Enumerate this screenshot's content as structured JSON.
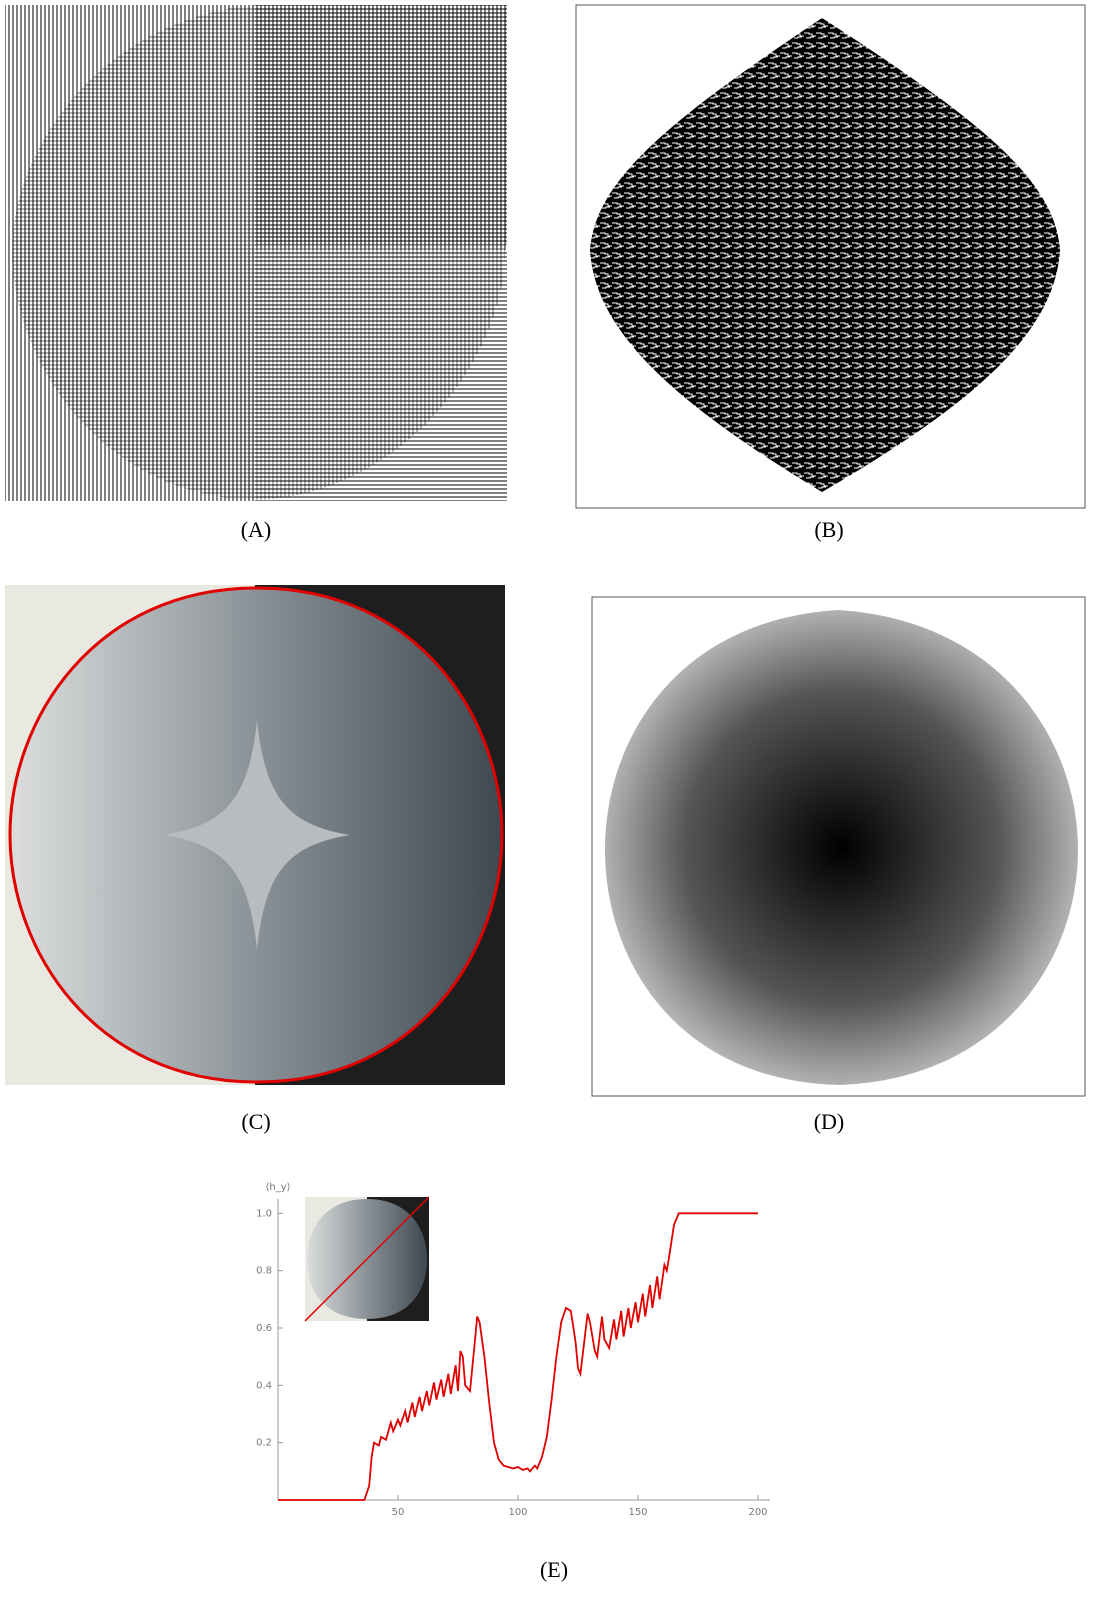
{
  "panels": [
    {
      "caption": "(A)"
    },
    {
      "caption": "(B)"
    },
    {
      "caption": "(C)"
    },
    {
      "caption": "(D)"
    },
    {
      "caption": "(E)"
    }
  ],
  "chart_data": {
    "type": "line",
    "y_label": "⟨h_y⟩",
    "x": [
      0,
      36,
      38,
      39,
      40,
      42,
      43,
      45,
      47,
      48,
      50,
      51,
      53,
      54,
      56,
      57,
      59,
      60,
      62,
      63,
      65,
      66,
      68,
      69,
      71,
      72,
      74,
      75,
      76,
      77,
      78,
      80,
      82,
      83,
      84,
      86,
      88,
      90,
      92,
      94,
      96,
      98,
      100,
      102,
      104,
      105,
      107,
      108,
      110,
      112,
      114,
      116,
      118,
      120,
      122,
      124,
      125,
      126,
      128,
      129,
      130,
      132,
      133,
      135,
      136,
      138,
      140,
      141,
      143,
      144,
      146,
      147,
      149,
      150,
      152,
      153,
      155,
      156,
      158,
      159,
      161,
      162,
      163,
      165,
      167,
      200
    ],
    "series": [
      {
        "color": "#e00000",
        "values": [
          0,
          0,
          0.05,
          0.15,
          0.2,
          0.19,
          0.22,
          0.21,
          0.27,
          0.24,
          0.28,
          0.26,
          0.31,
          0.27,
          0.34,
          0.29,
          0.36,
          0.31,
          0.38,
          0.33,
          0.41,
          0.35,
          0.42,
          0.36,
          0.44,
          0.37,
          0.47,
          0.38,
          0.52,
          0.5,
          0.4,
          0.38,
          0.55,
          0.64,
          0.62,
          0.5,
          0.34,
          0.2,
          0.14,
          0.12,
          0.115,
          0.11,
          0.115,
          0.105,
          0.11,
          0.1,
          0.12,
          0.11,
          0.15,
          0.22,
          0.35,
          0.5,
          0.62,
          0.67,
          0.66,
          0.55,
          0.46,
          0.44,
          0.58,
          0.65,
          0.62,
          0.52,
          0.5,
          0.64,
          0.56,
          0.53,
          0.63,
          0.56,
          0.66,
          0.57,
          0.67,
          0.6,
          0.69,
          0.62,
          0.72,
          0.64,
          0.75,
          0.67,
          0.78,
          0.7,
          0.82,
          0.8,
          0.85,
          0.96,
          1.0,
          1.0
        ]
      }
    ],
    "xlim": [
      0,
      205
    ],
    "ylim": [
      0,
      1.05
    ],
    "xticks": [
      50,
      100,
      150,
      200
    ],
    "yticks": [
      0.2,
      0.4,
      0.6,
      0.8,
      {
        "value": 1,
        "label": "1.0"
      }
    ]
  }
}
